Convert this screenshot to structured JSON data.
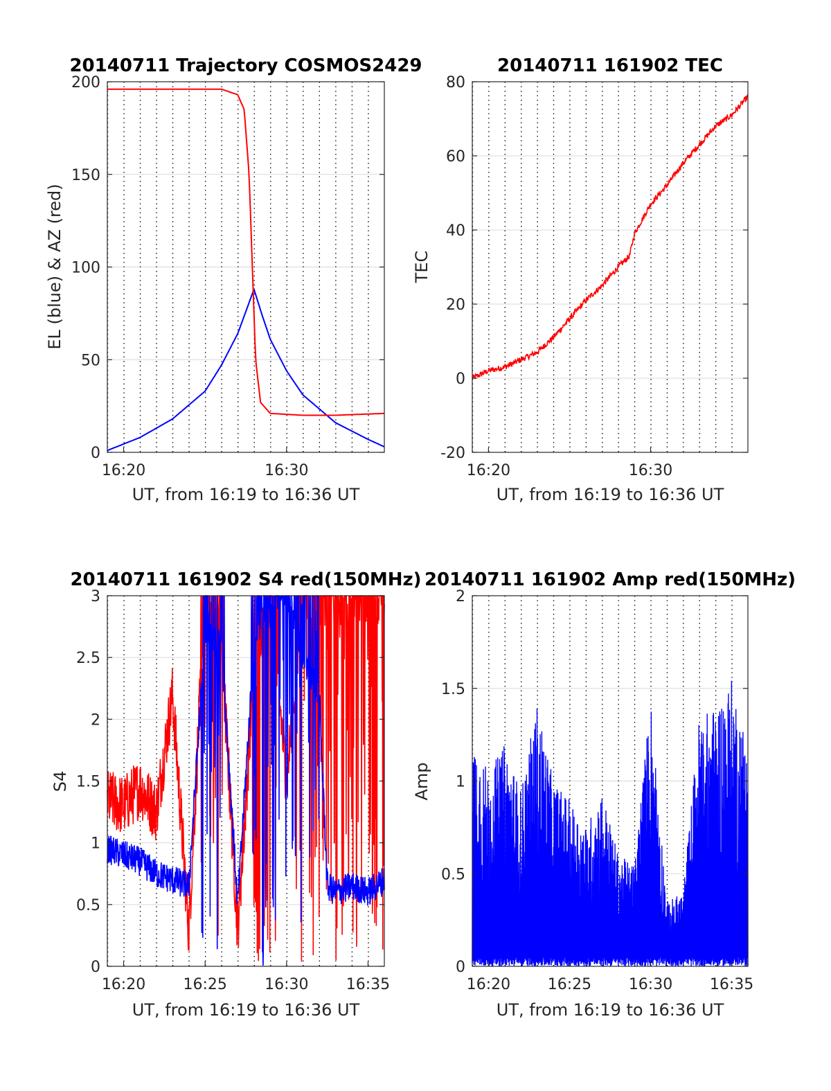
{
  "colors": {
    "red": "#ff0000",
    "blue": "#0000ff",
    "grid": "#d9d9d9",
    "axis": "#262626"
  },
  "chart_data": [
    {
      "type": "line",
      "title": "20140711 Trajectory COSMOS2429",
      "xlabel": "UT, from 16:19 to 16:36 UT",
      "ylabel": "EL (blue) & AZ (red)",
      "xlim": [
        "16:19",
        "16:36"
      ],
      "ylim": [
        0,
        200
      ],
      "x_ticks": [
        "16:20",
        "16:30"
      ],
      "y_ticks": [
        "0",
        "50",
        "100",
        "150",
        "200"
      ],
      "grid": "on, dotted vertical lines every 1 minute",
      "series": [
        {
          "color": "blue",
          "x": [
            "16:19",
            "16:21",
            "16:23",
            "16:25",
            "16:26",
            "16:27",
            "16:27.5",
            "16:28",
            "16:28.5",
            "16:29",
            "16:30",
            "16:31",
            "16:33",
            "16:35",
            "16:36"
          ],
          "values": [
            1,
            8,
            18,
            33,
            47,
            64,
            76,
            88,
            74,
            61,
            44,
            31,
            16,
            7,
            3
          ]
        },
        {
          "color": "red",
          "x": [
            "16:19",
            "16:25",
            "16:26",
            "16:27",
            "16:27.4",
            "16:27.7",
            "16:27.9",
            "16:28.1",
            "16:28.4",
            "16:29",
            "16:31",
            "16:33",
            "16:36"
          ],
          "values": [
            196,
            196,
            196,
            193,
            185,
            150,
            100,
            50,
            27,
            21,
            20,
            20,
            21
          ]
        }
      ]
    },
    {
      "type": "line",
      "title": "20140711 161902 TEC",
      "xlabel": "UT, from 16:19 to 16:36 UT",
      "ylabel": "TEC",
      "xlim": [
        "16:19",
        "16:36"
      ],
      "ylim": [
        -20,
        80
      ],
      "x_ticks": [
        "16:20",
        "16:30"
      ],
      "y_ticks": [
        "-20",
        "0",
        "20",
        "40",
        "60",
        "80"
      ],
      "grid": "on, dotted vertical lines every 1 minute",
      "series": [
        {
          "color": "red",
          "x": [
            "16:19",
            "16:20",
            "16:21",
            "16:22",
            "16:23",
            "16:24",
            "16:25",
            "16:26",
            "16:27",
            "16:28",
            "16:28.7",
            "16:29",
            "16:30",
            "16:31",
            "16:32",
            "16:33",
            "16:34",
            "16:35",
            "16:36"
          ],
          "values": [
            0,
            2,
            3,
            5,
            7,
            11,
            16,
            21,
            25,
            30,
            33,
            39,
            47,
            52,
            58,
            63,
            68,
            71,
            76
          ]
        }
      ]
    },
    {
      "type": "line",
      "title": "20140711 161902 S4 red(150MHz)",
      "xlabel": "UT, from 16:19 to 16:36 UT",
      "ylabel": "S4",
      "xlim": [
        "16:19",
        "16:36"
      ],
      "ylim": [
        0,
        3
      ],
      "x_ticks": [
        "16:20",
        "16:25",
        "16:30",
        "16:35"
      ],
      "y_ticks": [
        "0",
        "0.5",
        "1",
        "1.5",
        "2",
        "2.5",
        "3"
      ],
      "grid": "on, dotted vertical lines every 1 minute",
      "series": [
        {
          "color": "red",
          "x": [
            "16:19",
            "16:20",
            "16:21",
            "16:22",
            "16:23",
            "16:24",
            "16:25",
            "16:26",
            "16:27",
            "16:28",
            "16:29",
            "16:30",
            "16:31",
            "16:32",
            "16:33",
            "16:34",
            "16:35",
            "16:36"
          ],
          "values": [
            1.35,
            1.3,
            1.45,
            1.25,
            2.2,
            0.3,
            3.0,
            2.6,
            0.3,
            2.4,
            3.0,
            1.5,
            3.0,
            3.0,
            3.0,
            3.0,
            3.0,
            3.0
          ]
        },
        {
          "color": "blue",
          "x": [
            "16:19",
            "16:20",
            "16:21",
            "16:22",
            "16:23",
            "16:24",
            "16:25",
            "16:26",
            "16:27",
            "16:28",
            "16:29",
            "16:30",
            "16:31",
            "16:32",
            "16:32.5",
            "16:33",
            "16:34",
            "16:35",
            "16:36"
          ],
          "values": [
            0.95,
            0.9,
            0.85,
            0.75,
            0.7,
            0.65,
            2.7,
            2.6,
            0.5,
            2.6,
            3.0,
            3.0,
            2.5,
            2.2,
            0.65,
            0.6,
            0.65,
            0.6,
            0.7
          ]
        }
      ]
    },
    {
      "type": "line",
      "title": "20140711 161902 Amp red(150MHz)",
      "xlabel": "UT, from 16:19 to 16:36 UT",
      "ylabel": "Amp",
      "xlim": [
        "16:19",
        "16:36"
      ],
      "ylim": [
        0,
        2
      ],
      "x_ticks": [
        "16:20",
        "16:25",
        "16:30",
        "16:35"
      ],
      "y_ticks": [
        "0",
        "0.5",
        "1",
        "1.5",
        "2"
      ],
      "grid": "on, dotted vertical lines every 1 minute",
      "series": [
        {
          "color": "blue",
          "x": [
            "16:19",
            "16:20",
            "16:21",
            "16:22",
            "16:23",
            "16:24",
            "16:25",
            "16:26",
            "16:27",
            "16:28",
            "16:29",
            "16:30",
            "16:31",
            "16:32",
            "16:33",
            "16:34",
            "16:35",
            "16:36"
          ],
          "values": [
            1.27,
            1.05,
            1.2,
            0.95,
            1.42,
            1.0,
            0.9,
            0.75,
            0.95,
            0.6,
            0.55,
            1.46,
            0.35,
            0.4,
            1.35,
            1.4,
            1.55,
            1.2
          ]
        }
      ]
    }
  ]
}
